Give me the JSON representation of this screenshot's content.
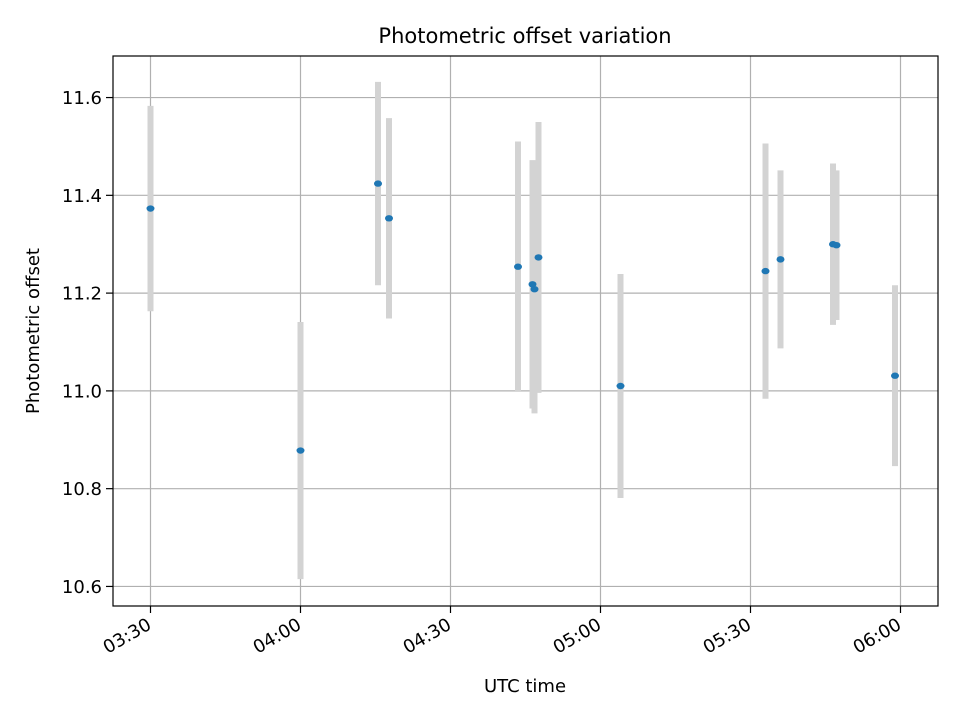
{
  "chart_data": {
    "type": "scatter",
    "title": "Photometric offset variation",
    "xlabel": "UTC time",
    "ylabel": "Photometric offset",
    "x_ticks": [
      "03:30",
      "04:00",
      "04:30",
      "05:00",
      "05:30",
      "06:00"
    ],
    "y_ticks": [
      "10.6",
      "10.8",
      "11.0",
      "11.2",
      "11.4",
      "11.6"
    ],
    "xlim": [
      "03:22.5",
      "06:07.5"
    ],
    "ylim": [
      10.56,
      11.685
    ],
    "grid": true,
    "errorbar_color": "#d3d3d3",
    "marker_color": "#1f77b4",
    "points": [
      {
        "time": "03:30",
        "y": 11.373,
        "err": 0.21
      },
      {
        "time": "04:00",
        "y": 10.878,
        "err": 0.263
      },
      {
        "time": "04:15.5",
        "y": 11.424,
        "err": 0.208
      },
      {
        "time": "04:17.7",
        "y": 11.353,
        "err": 0.205
      },
      {
        "time": "04:43.5",
        "y": 11.254,
        "err": 0.256
      },
      {
        "time": "04:46.4",
        "y": 11.218,
        "err": 0.254
      },
      {
        "time": "04:46.8",
        "y": 11.208,
        "err": 0.254
      },
      {
        "time": "04:47.6",
        "y": 11.273,
        "err": 0.277
      },
      {
        "time": "05:04",
        "y": 11.01,
        "err": 0.229
      },
      {
        "time": "05:33",
        "y": 11.245,
        "err": 0.261
      },
      {
        "time": "05:36",
        "y": 11.269,
        "err": 0.182
      },
      {
        "time": "05:46.5",
        "y": 11.3,
        "err": 0.165
      },
      {
        "time": "05:47.2",
        "y": 11.298,
        "err": 0.153
      },
      {
        "time": "05:58.9",
        "y": 11.031,
        "err": 0.185
      }
    ]
  }
}
